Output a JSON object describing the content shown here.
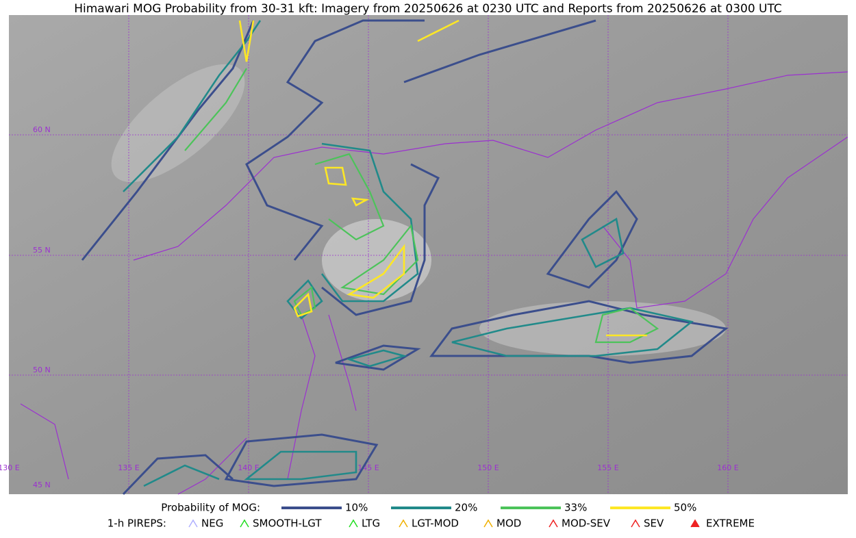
{
  "title": "Himawari MOG Probability from 30-31 kft: Imagery from 20250626 at 0230 UTC and Reports from 20250626 at 0300 UTC",
  "map": {
    "lat_labels": [
      "60 N",
      "55 N",
      "50 N",
      "45 N"
    ],
    "lon_labels": [
      "130 E",
      "135 E",
      "140 E",
      "145 E",
      "150 E",
      "155 E",
      "160 E"
    ],
    "label_color": "#9b30d0"
  },
  "legend": {
    "probability_title": "Probability of MOG:",
    "probability_levels": [
      {
        "label": "10%",
        "color": "#3b4e8c"
      },
      {
        "label": "20%",
        "color": "#218a8a"
      },
      {
        "label": "33%",
        "color": "#4cc35a"
      },
      {
        "label": "50%",
        "color": "#fde725"
      }
    ],
    "pireps_title": "1-h PIREPS:",
    "pireps": [
      {
        "label": "NEG",
        "color": "#b0b0ff"
      },
      {
        "label": "SMOOTH-LGT",
        "color": "#22dd22"
      },
      {
        "label": "LTG",
        "color": "#22dd22"
      },
      {
        "label": "LGT-MOD",
        "color": "#f0b000"
      },
      {
        "label": "MOD",
        "color": "#f0b000"
      },
      {
        "label": "MOD-SEV",
        "color": "#ee2222"
      },
      {
        "label": "SEV",
        "color": "#ee2222"
      },
      {
        "label": "EXTREME",
        "color": "#ee2222"
      }
    ]
  }
}
